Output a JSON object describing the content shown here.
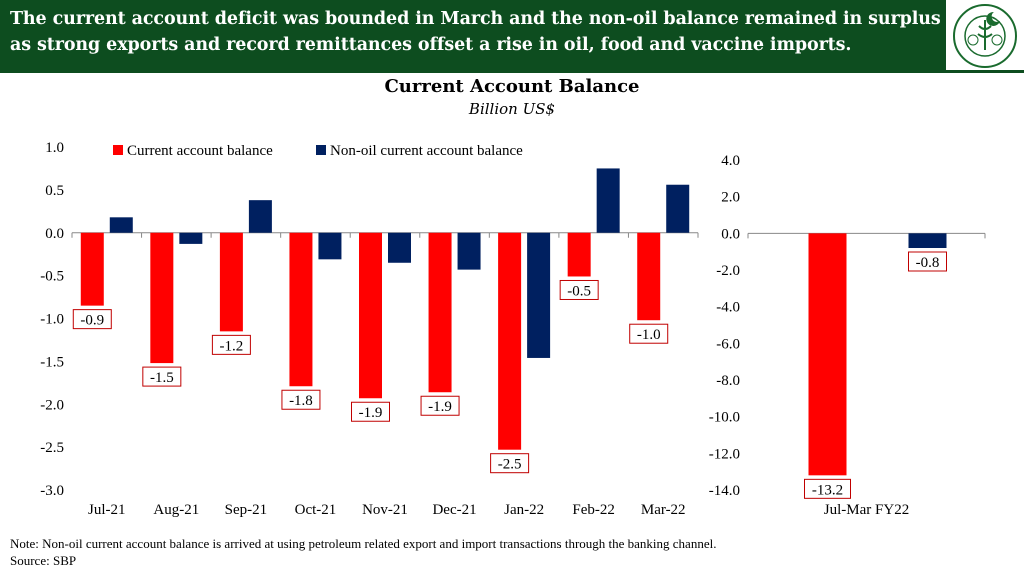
{
  "header": {
    "line1": "The current account deficit was bounded in March and the non-oil balance remained in surplus",
    "line2": "as strong exports and record remittances offset a rise in oil, food and vaccine imports.",
    "logo_text": "STATE BANK OF PAKISTAN"
  },
  "colors": {
    "header_bg": "#0d4d1f",
    "red": "#ff0000",
    "navy": "#002060"
  },
  "chart_data": [
    {
      "type": "bar",
      "title": "Current Account Balance",
      "subtitle": "Billion US$",
      "categories": [
        "Jul-21",
        "Aug-21",
        "Sep-21",
        "Oct-21",
        "Nov-21",
        "Dec-21",
        "Jan-22",
        "Feb-22",
        "Mar-22"
      ],
      "series": [
        {
          "name": "Current account balance",
          "values": [
            -0.85,
            -1.52,
            -1.15,
            -1.79,
            -1.93,
            -1.86,
            -2.53,
            -0.51,
            -1.02
          ],
          "labels": [
            "-0.9",
            "-1.5",
            "-1.2",
            "-1.8",
            "-1.9",
            "-1.9",
            "-2.5",
            "-0.5",
            "-1.0"
          ]
        },
        {
          "name": "Non-oil current account balance",
          "values": [
            0.18,
            -0.13,
            0.38,
            -0.31,
            -0.35,
            -0.43,
            -1.46,
            0.75,
            0.56
          ]
        }
      ],
      "ylim": [
        -3.0,
        1.0
      ],
      "yticks": [
        "1.0",
        "0.5",
        "0.0",
        "-0.5",
        "-1.0",
        "-1.5",
        "-2.0",
        "-2.5",
        "-3.0"
      ],
      "legend": "top"
    },
    {
      "type": "bar",
      "categories": [
        "Jul-Mar FY22"
      ],
      "series": [
        {
          "name": "Current account balance",
          "values": [
            -13.2
          ],
          "labels": [
            "-13.2"
          ]
        },
        {
          "name": "Non-oil current account balance",
          "values": [
            -0.8
          ],
          "labels": [
            "-0.8"
          ]
        }
      ],
      "ylim": [
        -14.0,
        4.0
      ],
      "yticks": [
        "4.0",
        "2.0",
        "0.0",
        "-2.0",
        "-4.0",
        "-6.0",
        "-8.0",
        "-10.0",
        "-12.0",
        "-14.0"
      ]
    }
  ],
  "footer": {
    "note": "Note: Non-oil current account balance is arrived at using petroleum related export and import transactions through the banking channel.",
    "source": "Source: SBP"
  }
}
